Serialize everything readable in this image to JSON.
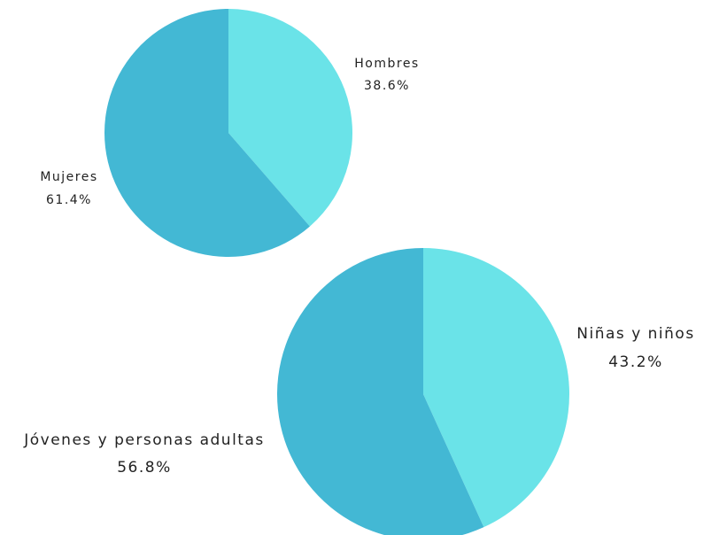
{
  "chart_data": [
    {
      "type": "pie",
      "categories": [
        "Hombres",
        "Mujeres"
      ],
      "values": [
        38.6,
        61.4
      ],
      "value_labels": [
        "38.6%",
        "61.4%"
      ],
      "colors": [
        "#6ae3e8",
        "#43b8d4"
      ]
    },
    {
      "type": "pie",
      "categories": [
        "Niñas y niños",
        "Jóvenes y personas adultas"
      ],
      "values": [
        43.2,
        56.8
      ],
      "value_labels": [
        "43.2%",
        "56.8%"
      ],
      "colors": [
        "#6ae3e8",
        "#43b8d4"
      ]
    }
  ]
}
